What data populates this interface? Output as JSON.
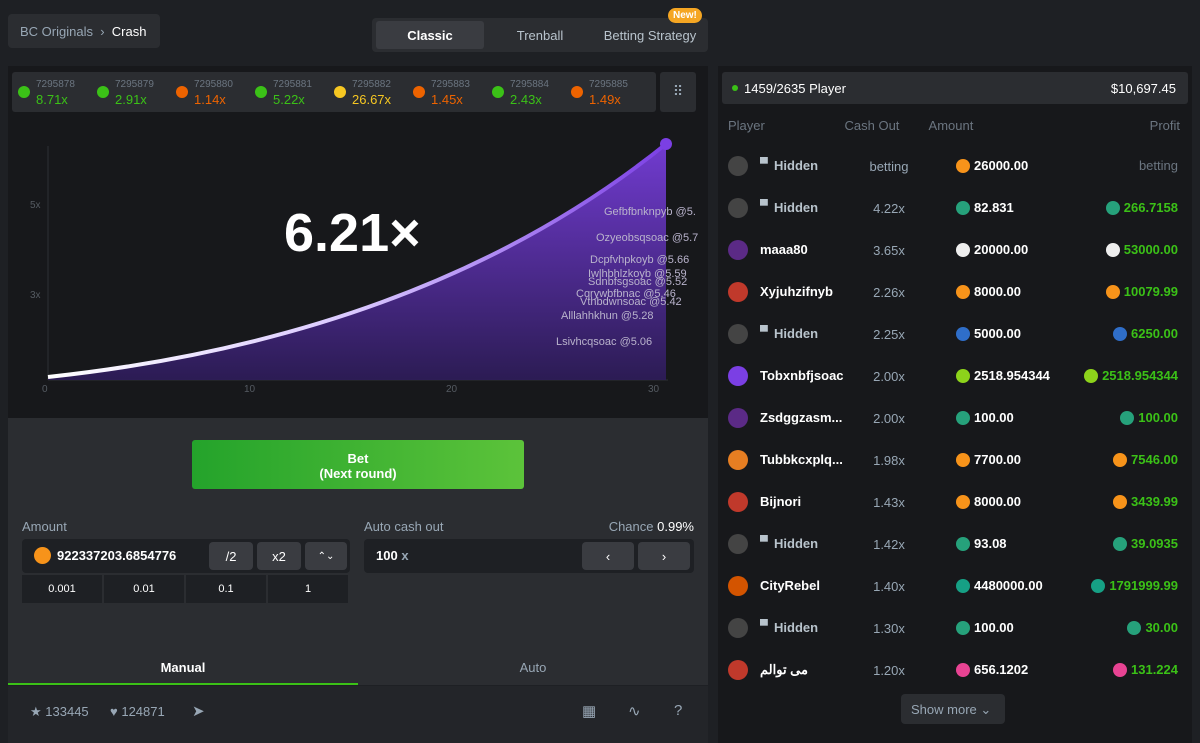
{
  "breadcrumb": {
    "parent": "BC Originals",
    "current": "Crash"
  },
  "tabs": [
    {
      "label": "Classic"
    },
    {
      "label": "Trenball"
    },
    {
      "label": "Betting Strategy",
      "badge": "New!"
    }
  ],
  "history": [
    {
      "id": "7295878",
      "multiplier": "8.71x",
      "color": "#3bc117"
    },
    {
      "id": "7295879",
      "multiplier": "2.91x",
      "color": "#3bc117"
    },
    {
      "id": "7295880",
      "multiplier": "1.14x",
      "color": "#ed6300"
    },
    {
      "id": "7295881",
      "multiplier": "5.22x",
      "color": "#3bc117"
    },
    {
      "id": "7295882",
      "multiplier": "26.67x",
      "color": "#f6c722"
    },
    {
      "id": "7295883",
      "multiplier": "1.45x",
      "color": "#ed6300"
    },
    {
      "id": "7295884",
      "multiplier": "2.43x",
      "color": "#3bc117"
    },
    {
      "id": "7295885",
      "multiplier": "1.49x",
      "color": "#ed6300"
    }
  ],
  "game": {
    "multiplier": "6.21×",
    "y_labels": [
      "5x",
      "3x"
    ],
    "x_labels": [
      "0",
      "10",
      "20",
      "30"
    ],
    "cashouts": [
      "Gefbfbnknpyb @5.",
      "Ozyeobsqsoac @5.7",
      "Dcpfvhpkoyb @5.66",
      "Iwlhbhlzkoyb @5.59",
      "Sdnbfsgsoac @5.52",
      "Cqrywbfbnac @5.46",
      "Vthbdwnsoac @5.42",
      "Alllahhkhun @5.28",
      "Lsivhcqsoac @5.06"
    ]
  },
  "bet": {
    "button": "Bet",
    "button_sub": "(Next round)",
    "amount_label": "Amount",
    "amount": "922337203.6854776",
    "half": "/2",
    "double": "x2",
    "quick": [
      "0.001",
      "0.01",
      "0.1",
      "1"
    ],
    "auto_label": "Auto cash out",
    "chance_label": "Chance",
    "chance": "0.99%",
    "auto_value": "100",
    "auto_unit": "x",
    "modes": [
      "Manual",
      "Auto"
    ],
    "stars": "133445",
    "likes": "124871"
  },
  "players": {
    "count": "1459/2635 Player",
    "total": "$10,697.45",
    "columns": [
      "Player",
      "Cash Out",
      "Amount",
      "Profit"
    ],
    "rows": [
      {
        "name": "Hidden",
        "cashout": "betting",
        "amount": "26000.00",
        "profit": "betting",
        "coin": "#f7931a",
        "avatar": "#444"
      },
      {
        "name": "Hidden",
        "cashout": "4.22x",
        "amount": "82.831",
        "profit": "266.7158",
        "coin": "#26a17b",
        "avatar": "#444"
      },
      {
        "name": "maaa80",
        "cashout": "3.65x",
        "amount": "20000.00",
        "profit": "53000.00",
        "coin": "#eeeeee",
        "avatar": "#5b2a86"
      },
      {
        "name": "Xyjuhzifnyb",
        "cashout": "2.26x",
        "amount": "8000.00",
        "profit": "10079.99",
        "coin": "#f7931a",
        "avatar": "#c0392b"
      },
      {
        "name": "Hidden",
        "cashout": "2.25x",
        "amount": "5000.00",
        "profit": "6250.00",
        "coin": "#2f6ec9",
        "avatar": "#444"
      },
      {
        "name": "Tobxnbfjsoac",
        "cashout": "2.00x",
        "amount": "2518.954344",
        "profit": "2518.954344",
        "coin": "#8dd31b",
        "avatar": "#7b3fe4"
      },
      {
        "name": "Zsdggzasm...",
        "cashout": "2.00x",
        "amount": "100.00",
        "profit": "100.00",
        "coin": "#26a17b",
        "avatar": "#5b2a86"
      },
      {
        "name": "Tubbkcxplq...",
        "cashout": "1.98x",
        "amount": "7700.00",
        "profit": "7546.00",
        "coin": "#f7931a",
        "avatar": "#e67e22"
      },
      {
        "name": "Bijnori",
        "cashout": "1.43x",
        "amount": "8000.00",
        "profit": "3439.99",
        "coin": "#f7931a",
        "avatar": "#c0392b"
      },
      {
        "name": "Hidden",
        "cashout": "1.42x",
        "amount": "93.08",
        "profit": "39.0935",
        "coin": "#26a17b",
        "avatar": "#444"
      },
      {
        "name": "CityRebel",
        "cashout": "1.40x",
        "amount": "4480000.00",
        "profit": "1791999.99",
        "coin": "#16a085",
        "avatar": "#d35400"
      },
      {
        "name": "Hidden",
        "cashout": "1.30x",
        "amount": "100.00",
        "profit": "30.00",
        "coin": "#26a17b",
        "avatar": "#444"
      },
      {
        "name": "مى توالم",
        "cashout": "1.20x",
        "amount": "656.1202",
        "profit": "131.224",
        "coin": "#e84393",
        "avatar": "#c0392b"
      }
    ],
    "more": "Show more"
  }
}
